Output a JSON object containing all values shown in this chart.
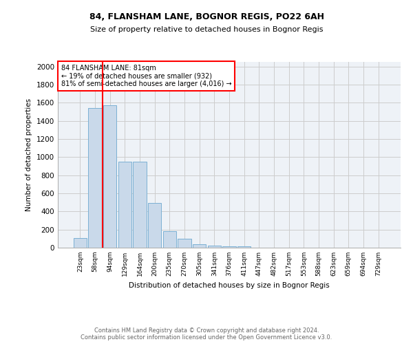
{
  "title_line1": "84, FLANSHAM LANE, BOGNOR REGIS, PO22 6AH",
  "title_line2": "Size of property relative to detached houses in Bognor Regis",
  "xlabel": "Distribution of detached houses by size in Bognor Regis",
  "ylabel": "Number of detached properties",
  "footer_line1": "Contains HM Land Registry data © Crown copyright and database right 2024.",
  "footer_line2": "Contains public sector information licensed under the Open Government Licence v3.0.",
  "bar_labels": [
    "23sqm",
    "58sqm",
    "94sqm",
    "129sqm",
    "164sqm",
    "200sqm",
    "235sqm",
    "270sqm",
    "305sqm",
    "341sqm",
    "376sqm",
    "411sqm",
    "447sqm",
    "482sqm",
    "517sqm",
    "553sqm",
    "588sqm",
    "623sqm",
    "659sqm",
    "694sqm",
    "729sqm"
  ],
  "bar_values": [
    110,
    1540,
    1570,
    950,
    950,
    490,
    185,
    100,
    35,
    25,
    15,
    15,
    0,
    0,
    0,
    0,
    0,
    0,
    0,
    0,
    0
  ],
  "bar_color": "#c9d9ea",
  "bar_edge_color": "#7ab0d4",
  "property_line_label": "84 FLANSHAM LANE: 81sqm",
  "annotation_line2": "← 19% of detached houses are smaller (932)",
  "annotation_line3": "81% of semi-detached houses are larger (4,016) →",
  "annotation_box_color": "white",
  "annotation_box_edge": "red",
  "vline_color": "red",
  "ylim": [
    0,
    2050
  ],
  "yticks": [
    0,
    200,
    400,
    600,
    800,
    1000,
    1200,
    1400,
    1600,
    1800,
    2000
  ],
  "grid_color": "#cccccc",
  "bg_color": "#eef2f7",
  "prop_vline_x": 1.52
}
